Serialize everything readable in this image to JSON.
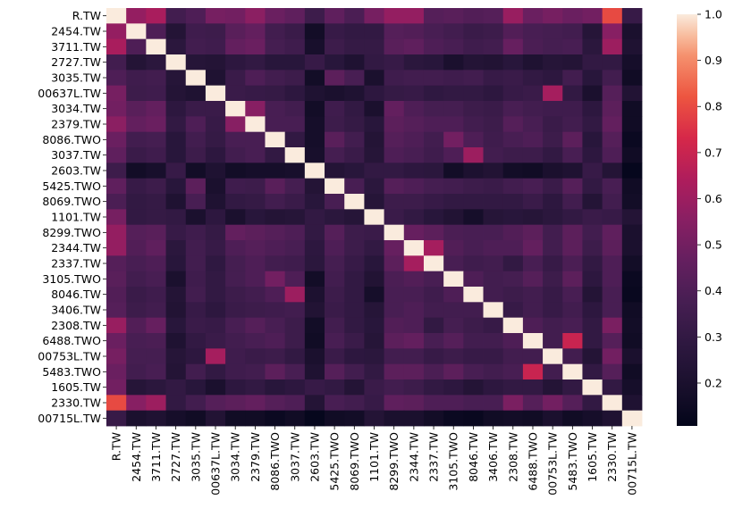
{
  "chart_data": {
    "type": "heatmap",
    "title": "",
    "xlabel": "",
    "ylabel": "",
    "labels": [
      "R.TW",
      "2454.TW",
      "3711.TW",
      "2727.TW",
      "3035.TW",
      "00637L.TW",
      "3034.TW",
      "2379.TW",
      "8086.TWO",
      "3037.TW",
      "2603.TW",
      "5425.TWO",
      "8069.TWO",
      "1101.TW",
      "8299.TWO",
      "2344.TW",
      "2337.TW",
      "3105.TWO",
      "8046.TW",
      "3406.TW",
      "2308.TW",
      "6488.TWO",
      "00753L.TW",
      "5483.TWO",
      "1605.TW",
      "2330.TW",
      "00715L.TW"
    ],
    "values": [
      [
        1.0,
        0.58,
        0.63,
        0.36,
        0.4,
        0.51,
        0.5,
        0.56,
        0.48,
        0.45,
        0.34,
        0.45,
        0.39,
        0.51,
        0.58,
        0.58,
        0.42,
        0.43,
        0.41,
        0.42,
        0.59,
        0.48,
        0.51,
        0.48,
        0.5,
        0.8,
        0.32
      ],
      [
        0.58,
        1.0,
        0.4,
        0.24,
        0.35,
        0.34,
        0.43,
        0.46,
        0.36,
        0.33,
        0.17,
        0.32,
        0.3,
        0.3,
        0.42,
        0.41,
        0.38,
        0.36,
        0.33,
        0.34,
        0.41,
        0.38,
        0.37,
        0.36,
        0.25,
        0.55,
        0.2
      ],
      [
        0.63,
        0.4,
        1.0,
        0.27,
        0.36,
        0.35,
        0.46,
        0.48,
        0.37,
        0.35,
        0.19,
        0.34,
        0.31,
        0.31,
        0.43,
        0.45,
        0.4,
        0.38,
        0.35,
        0.36,
        0.47,
        0.39,
        0.37,
        0.38,
        0.27,
        0.6,
        0.22
      ],
      [
        0.36,
        0.24,
        0.27,
        1.0,
        0.25,
        0.24,
        0.28,
        0.3,
        0.26,
        0.26,
        0.32,
        0.26,
        0.22,
        0.3,
        0.32,
        0.27,
        0.26,
        0.2,
        0.24,
        0.23,
        0.26,
        0.22,
        0.25,
        0.24,
        0.3,
        0.3,
        0.18
      ],
      [
        0.4,
        0.35,
        0.36,
        0.25,
        1.0,
        0.22,
        0.33,
        0.4,
        0.36,
        0.34,
        0.17,
        0.44,
        0.38,
        0.2,
        0.35,
        0.36,
        0.36,
        0.35,
        0.36,
        0.32,
        0.33,
        0.3,
        0.28,
        0.36,
        0.26,
        0.36,
        0.16
      ],
      [
        0.51,
        0.34,
        0.35,
        0.24,
        0.22,
        1.0,
        0.33,
        0.32,
        0.31,
        0.28,
        0.22,
        0.2,
        0.22,
        0.28,
        0.31,
        0.32,
        0.29,
        0.3,
        0.3,
        0.28,
        0.32,
        0.33,
        0.62,
        0.3,
        0.2,
        0.42,
        0.23
      ],
      [
        0.5,
        0.43,
        0.46,
        0.28,
        0.33,
        0.33,
        1.0,
        0.55,
        0.38,
        0.36,
        0.17,
        0.35,
        0.3,
        0.2,
        0.46,
        0.4,
        0.37,
        0.37,
        0.34,
        0.33,
        0.38,
        0.36,
        0.35,
        0.35,
        0.28,
        0.44,
        0.16
      ],
      [
        0.56,
        0.46,
        0.48,
        0.3,
        0.4,
        0.32,
        0.55,
        1.0,
        0.38,
        0.38,
        0.18,
        0.34,
        0.31,
        0.26,
        0.44,
        0.42,
        0.4,
        0.4,
        0.36,
        0.34,
        0.42,
        0.38,
        0.33,
        0.36,
        0.3,
        0.46,
        0.16
      ],
      [
        0.48,
        0.36,
        0.37,
        0.26,
        0.36,
        0.31,
        0.38,
        0.38,
        1.0,
        0.3,
        0.18,
        0.43,
        0.36,
        0.24,
        0.42,
        0.4,
        0.36,
        0.5,
        0.4,
        0.35,
        0.38,
        0.4,
        0.34,
        0.44,
        0.26,
        0.42,
        0.14
      ],
      [
        0.45,
        0.33,
        0.35,
        0.26,
        0.34,
        0.28,
        0.36,
        0.38,
        0.3,
        1.0,
        0.19,
        0.37,
        0.33,
        0.25,
        0.4,
        0.38,
        0.35,
        0.4,
        0.6,
        0.36,
        0.34,
        0.34,
        0.3,
        0.38,
        0.28,
        0.4,
        0.16
      ],
      [
        0.34,
        0.17,
        0.19,
        0.32,
        0.17,
        0.22,
        0.17,
        0.18,
        0.18,
        0.19,
        1.0,
        0.24,
        0.26,
        0.3,
        0.3,
        0.28,
        0.27,
        0.17,
        0.21,
        0.23,
        0.17,
        0.16,
        0.2,
        0.22,
        0.32,
        0.24,
        0.12
      ],
      [
        0.45,
        0.32,
        0.34,
        0.26,
        0.44,
        0.2,
        0.35,
        0.34,
        0.43,
        0.37,
        0.24,
        1.0,
        0.38,
        0.27,
        0.42,
        0.4,
        0.37,
        0.36,
        0.34,
        0.33,
        0.36,
        0.38,
        0.33,
        0.42,
        0.3,
        0.38,
        0.16
      ],
      [
        0.39,
        0.3,
        0.31,
        0.22,
        0.38,
        0.22,
        0.3,
        0.31,
        0.36,
        0.33,
        0.26,
        0.38,
        1.0,
        0.25,
        0.34,
        0.34,
        0.32,
        0.3,
        0.3,
        0.3,
        0.3,
        0.33,
        0.28,
        0.36,
        0.24,
        0.36,
        0.17
      ],
      [
        0.51,
        0.3,
        0.31,
        0.3,
        0.2,
        0.28,
        0.2,
        0.26,
        0.24,
        0.25,
        0.3,
        0.27,
        0.25,
        1.0,
        0.33,
        0.3,
        0.26,
        0.23,
        0.18,
        0.25,
        0.26,
        0.25,
        0.27,
        0.3,
        0.33,
        0.32,
        0.24
      ],
      [
        0.58,
        0.42,
        0.43,
        0.32,
        0.35,
        0.31,
        0.46,
        0.44,
        0.42,
        0.4,
        0.3,
        0.42,
        0.34,
        0.33,
        1.0,
        0.47,
        0.44,
        0.39,
        0.38,
        0.38,
        0.41,
        0.44,
        0.36,
        0.44,
        0.36,
        0.45,
        0.2
      ],
      [
        0.58,
        0.41,
        0.45,
        0.27,
        0.36,
        0.32,
        0.4,
        0.42,
        0.4,
        0.38,
        0.28,
        0.4,
        0.34,
        0.3,
        0.47,
        1.0,
        0.62,
        0.41,
        0.38,
        0.4,
        0.4,
        0.46,
        0.36,
        0.44,
        0.34,
        0.44,
        0.2
      ],
      [
        0.42,
        0.38,
        0.4,
        0.26,
        0.36,
        0.29,
        0.37,
        0.4,
        0.36,
        0.35,
        0.27,
        0.37,
        0.32,
        0.26,
        0.44,
        0.62,
        1.0,
        0.38,
        0.35,
        0.36,
        0.3,
        0.38,
        0.32,
        0.39,
        0.3,
        0.4,
        0.17
      ],
      [
        0.43,
        0.36,
        0.38,
        0.2,
        0.35,
        0.3,
        0.37,
        0.4,
        0.5,
        0.4,
        0.17,
        0.36,
        0.3,
        0.23,
        0.39,
        0.41,
        0.38,
        1.0,
        0.4,
        0.36,
        0.37,
        0.42,
        0.34,
        0.44,
        0.28,
        0.4,
        0.14
      ],
      [
        0.41,
        0.33,
        0.35,
        0.24,
        0.36,
        0.3,
        0.34,
        0.36,
        0.4,
        0.6,
        0.21,
        0.34,
        0.3,
        0.18,
        0.38,
        0.38,
        0.35,
        0.4,
        1.0,
        0.36,
        0.34,
        0.36,
        0.32,
        0.38,
        0.24,
        0.38,
        0.13
      ],
      [
        0.42,
        0.34,
        0.36,
        0.23,
        0.32,
        0.28,
        0.33,
        0.34,
        0.35,
        0.36,
        0.23,
        0.33,
        0.3,
        0.25,
        0.38,
        0.4,
        0.36,
        0.36,
        0.36,
        1.0,
        0.32,
        0.36,
        0.32,
        0.36,
        0.28,
        0.38,
        0.16
      ],
      [
        0.59,
        0.41,
        0.47,
        0.26,
        0.33,
        0.32,
        0.38,
        0.42,
        0.38,
        0.34,
        0.17,
        0.36,
        0.3,
        0.26,
        0.41,
        0.4,
        0.3,
        0.37,
        0.34,
        0.32,
        1.0,
        0.4,
        0.36,
        0.38,
        0.3,
        0.52,
        0.17
      ],
      [
        0.48,
        0.38,
        0.39,
        0.22,
        0.3,
        0.33,
        0.36,
        0.38,
        0.4,
        0.34,
        0.16,
        0.38,
        0.33,
        0.25,
        0.44,
        0.46,
        0.38,
        0.42,
        0.36,
        0.36,
        0.4,
        1.0,
        0.36,
        0.7,
        0.3,
        0.42,
        0.16
      ],
      [
        0.51,
        0.37,
        0.37,
        0.25,
        0.28,
        0.62,
        0.35,
        0.33,
        0.34,
        0.3,
        0.2,
        0.33,
        0.28,
        0.27,
        0.36,
        0.36,
        0.32,
        0.34,
        0.32,
        0.32,
        0.36,
        0.36,
        1.0,
        0.36,
        0.24,
        0.5,
        0.2
      ],
      [
        0.48,
        0.36,
        0.38,
        0.24,
        0.36,
        0.3,
        0.35,
        0.36,
        0.44,
        0.38,
        0.22,
        0.42,
        0.36,
        0.3,
        0.44,
        0.44,
        0.39,
        0.44,
        0.38,
        0.36,
        0.38,
        0.7,
        0.36,
        1.0,
        0.3,
        0.42,
        0.16
      ],
      [
        0.5,
        0.25,
        0.27,
        0.3,
        0.26,
        0.2,
        0.28,
        0.3,
        0.26,
        0.28,
        0.32,
        0.3,
        0.24,
        0.33,
        0.36,
        0.34,
        0.3,
        0.28,
        0.24,
        0.28,
        0.3,
        0.3,
        0.24,
        0.3,
        1.0,
        0.3,
        0.18
      ],
      [
        0.8,
        0.55,
        0.6,
        0.3,
        0.36,
        0.42,
        0.44,
        0.46,
        0.42,
        0.4,
        0.24,
        0.38,
        0.36,
        0.32,
        0.45,
        0.44,
        0.4,
        0.4,
        0.38,
        0.38,
        0.52,
        0.42,
        0.5,
        0.42,
        0.3,
        1.0,
        0.22
      ],
      [
        0.32,
        0.2,
        0.22,
        0.18,
        0.16,
        0.23,
        0.16,
        0.16,
        0.14,
        0.16,
        0.12,
        0.16,
        0.17,
        0.24,
        0.2,
        0.2,
        0.17,
        0.14,
        0.13,
        0.16,
        0.17,
        0.16,
        0.2,
        0.16,
        0.18,
        0.22,
        1.0
      ]
    ],
    "colorbar": {
      "min": 0.107,
      "max": 1.0,
      "ticks": [
        "0.2",
        "0.3",
        "0.4",
        "0.5",
        "0.6",
        "0.7",
        "0.8",
        "0.9",
        "1.0"
      ],
      "colormap": "rocket"
    },
    "grid": false
  }
}
